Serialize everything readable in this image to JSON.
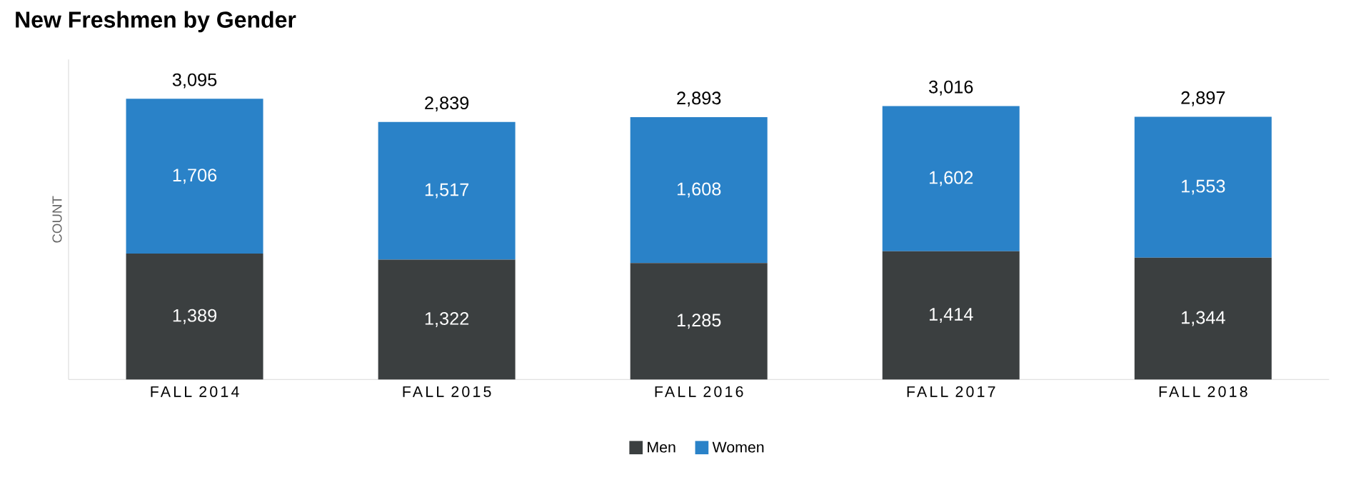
{
  "chart_data": {
    "type": "bar",
    "stacked": true,
    "title": "New Freshmen by Gender",
    "ylabel": "COUNT",
    "categories": [
      "FALL 2014",
      "FALL 2015",
      "FALL 2016",
      "FALL 2017",
      "FALL 2018"
    ],
    "series": [
      {
        "name": "Men",
        "color": "#3b3f40",
        "values": [
          1389,
          1322,
          1285,
          1414,
          1344
        ],
        "value_labels": [
          "1,389",
          "1,322",
          "1,285",
          "1,414",
          "1,344"
        ]
      },
      {
        "name": "Women",
        "color": "#2a82c8",
        "values": [
          1706,
          1517,
          1608,
          1602,
          1553
        ],
        "value_labels": [
          "1,706",
          "1,517",
          "1,608",
          "1,602",
          "1,553"
        ]
      }
    ],
    "totals": [
      "3,095",
      "2,839",
      "2,893",
      "3,016",
      "2,897"
    ],
    "legend": "bottom",
    "tick_labels": "x"
  }
}
